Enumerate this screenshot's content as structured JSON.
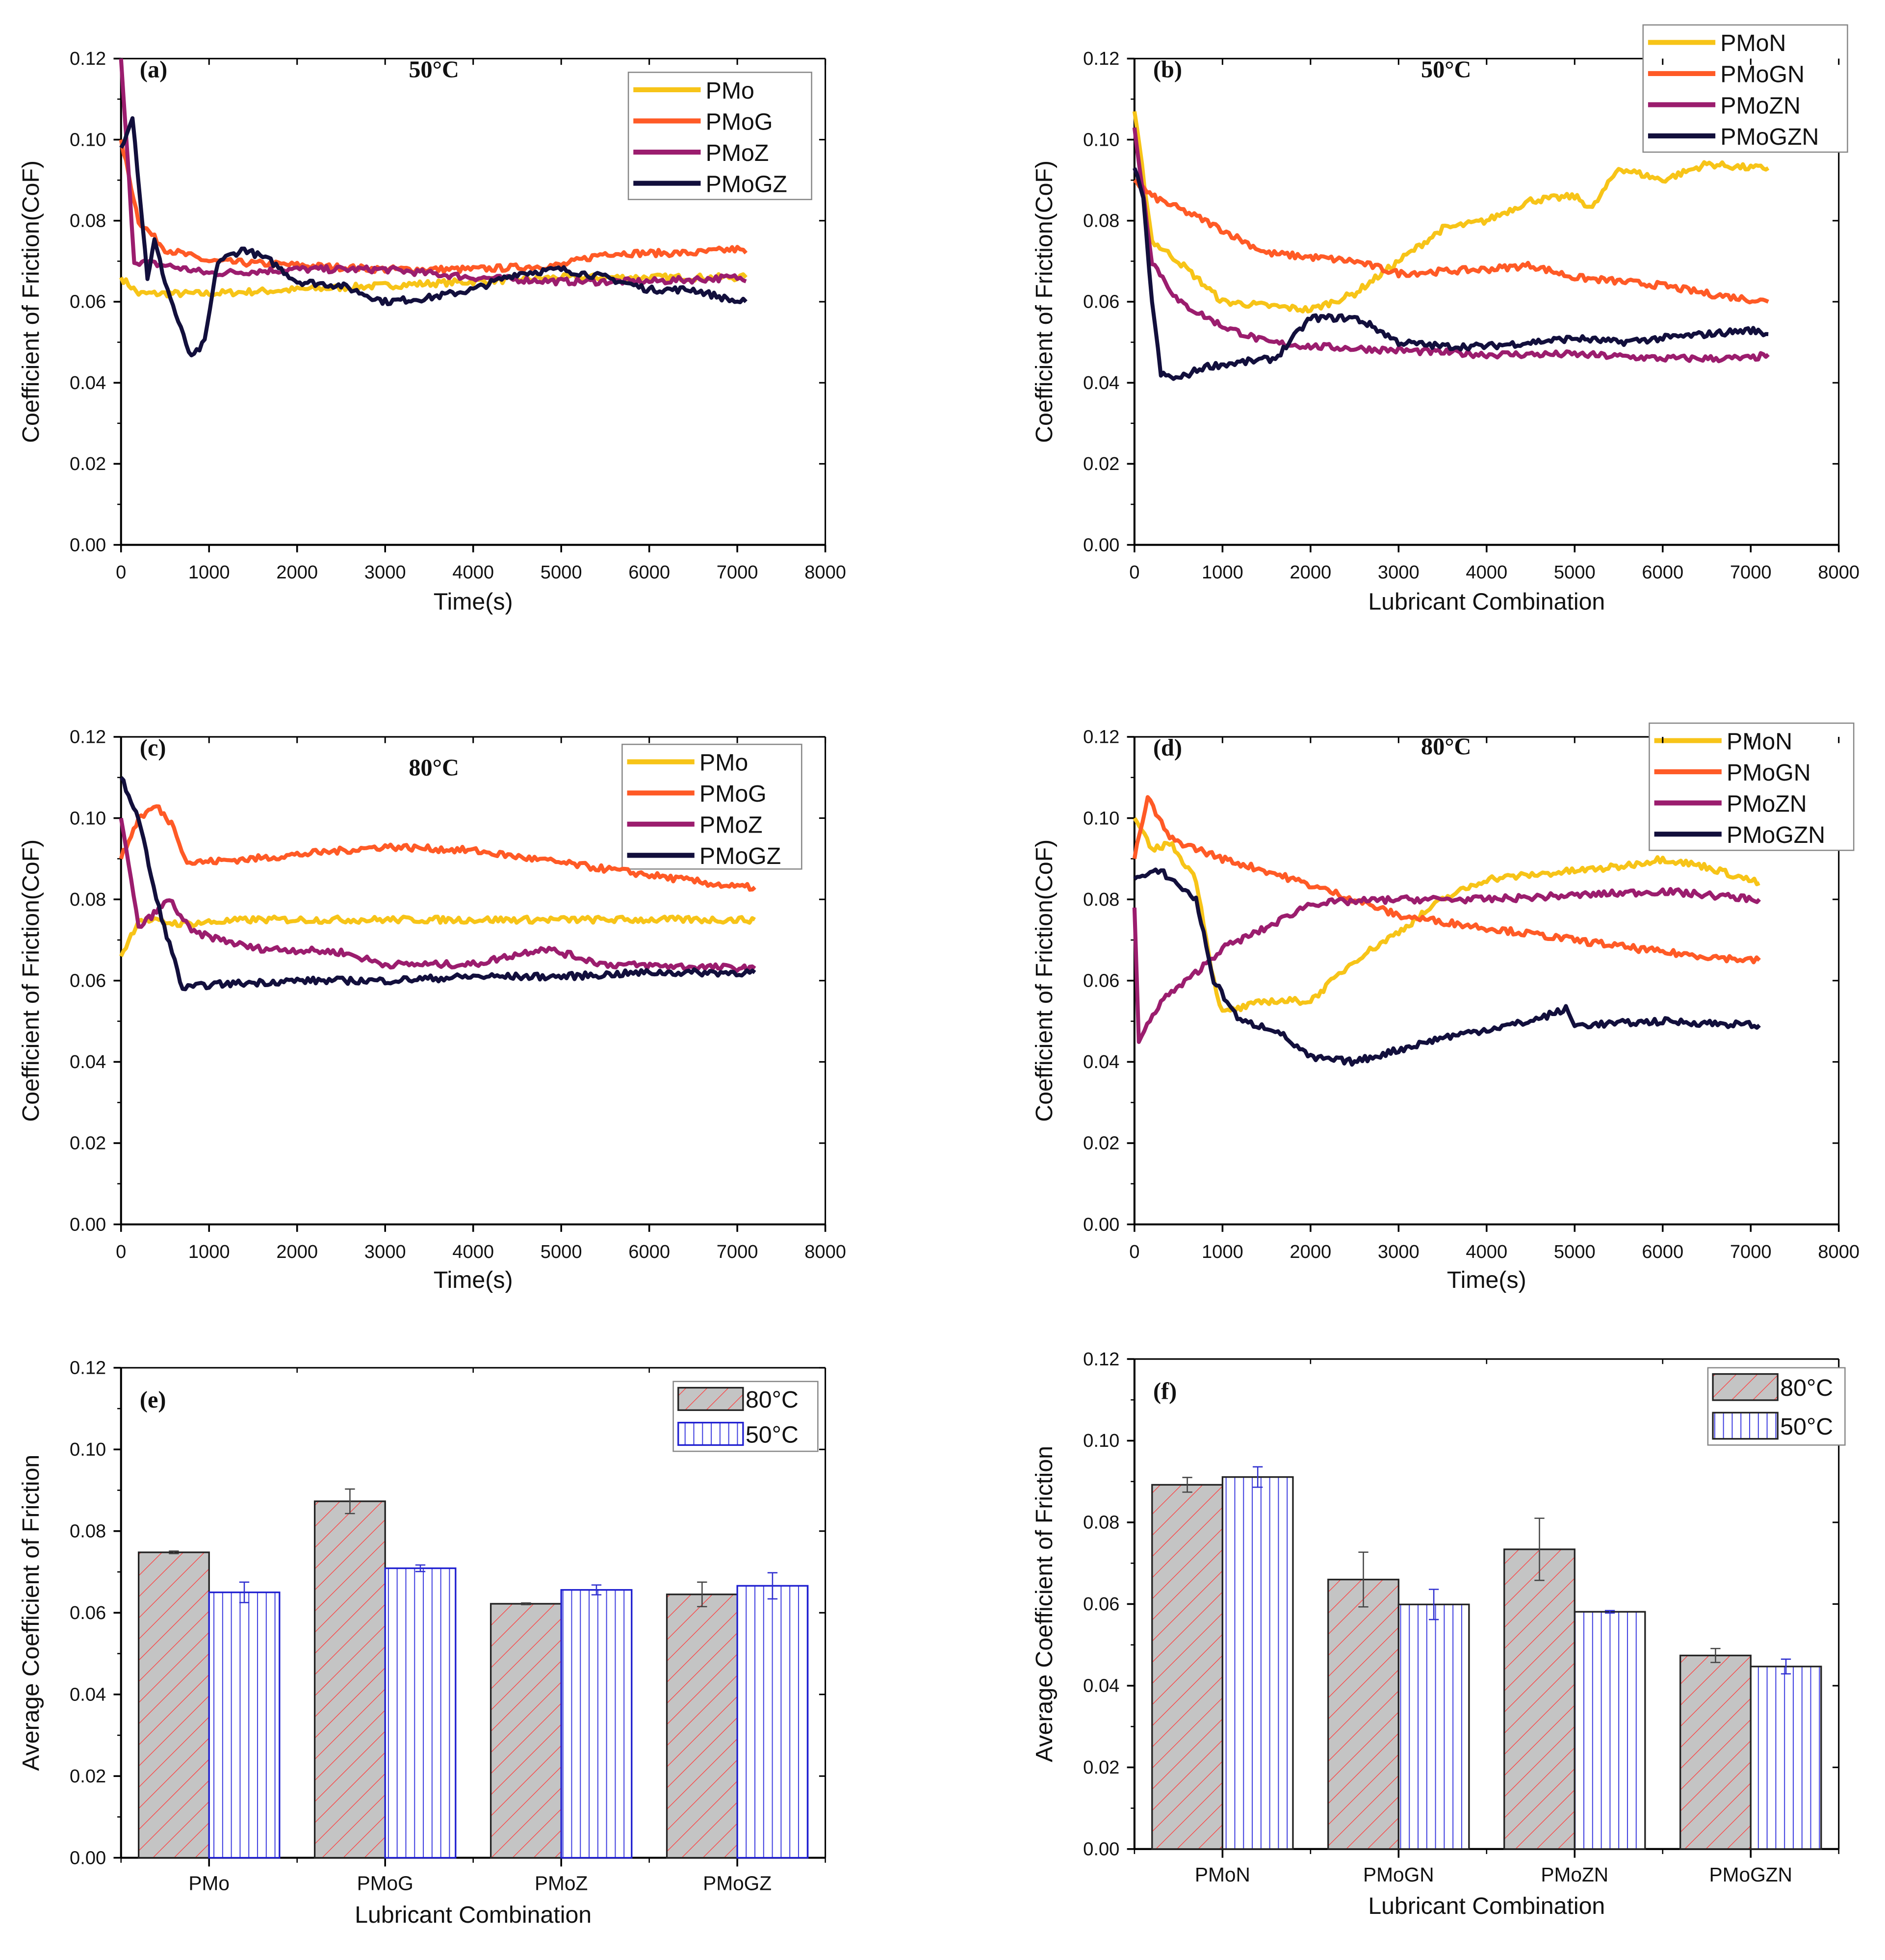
{
  "chart_data": [
    {
      "type": "line",
      "panel": "(a)",
      "title": "50°C",
      "xlabel": "Time(s)",
      "ylabel": "Coefficient of Friction(CoF)",
      "xlim": [
        0,
        8000
      ],
      "ylim": [
        0,
        0.12
      ],
      "xticks": [
        "0",
        "1000",
        "2000",
        "3000",
        "4000",
        "5000",
        "6000",
        "7000",
        "8000"
      ],
      "yticks": [
        "0.00",
        "0.02",
        "0.04",
        "0.06",
        "0.08",
        "0.10",
        "0.12"
      ],
      "legend_position": "top-right",
      "series": [
        {
          "name": "PMo",
          "color": "#F7C418",
          "x": [
            0,
            200,
            1000,
            2000,
            3000,
            4000,
            5000,
            6000,
            7000,
            7100
          ],
          "y": [
            0.066,
            0.062,
            0.062,
            0.063,
            0.064,
            0.065,
            0.066,
            0.066,
            0.066,
            0.066
          ]
        },
        {
          "name": "PMoG",
          "color": "#FF5A26",
          "x": [
            0,
            200,
            500,
            1000,
            2000,
            3000,
            4000,
            5000,
            5500,
            6500,
            7000,
            7100
          ],
          "y": [
            0.1,
            0.08,
            0.073,
            0.07,
            0.069,
            0.068,
            0.068,
            0.069,
            0.072,
            0.072,
            0.073,
            0.072
          ]
        },
        {
          "name": "PMoZ",
          "color": "#9B1D6E",
          "x": [
            0,
            150,
            500,
            1000,
            2000,
            3000,
            4000,
            5000,
            6000,
            7000,
            7100
          ],
          "y": [
            0.12,
            0.07,
            0.069,
            0.067,
            0.068,
            0.068,
            0.066,
            0.065,
            0.065,
            0.066,
            0.065
          ]
        },
        {
          "name": "PMoGZ",
          "color": "#120F3C",
          "x": [
            0,
            130,
            300,
            380,
            500,
            650,
            800,
            950,
            1100,
            1400,
            1700,
            2000,
            2500,
            3000,
            3500,
            4000,
            4500,
            5000,
            5500,
            6000,
            6500,
            7000,
            7100
          ],
          "y": [
            0.098,
            0.106,
            0.066,
            0.075,
            0.065,
            0.055,
            0.046,
            0.05,
            0.07,
            0.073,
            0.07,
            0.065,
            0.064,
            0.06,
            0.061,
            0.063,
            0.067,
            0.068,
            0.066,
            0.063,
            0.063,
            0.06,
            0.06
          ]
        }
      ]
    },
    {
      "type": "line",
      "panel": "(b)",
      "title": "50°C",
      "xlabel": "Lubricant Combination",
      "ylabel": "Coefficient of Friction(CoF)",
      "xlim": [
        0,
        8000
      ],
      "ylim": [
        0,
        0.12
      ],
      "xticks": [
        "0",
        "1000",
        "2000",
        "3000",
        "4000",
        "5000",
        "6000",
        "7000",
        "8000"
      ],
      "yticks": [
        "0.00",
        "0.02",
        "0.04",
        "0.06",
        "0.08",
        "0.10",
        "0.12"
      ],
      "legend_position": "top-right",
      "series": [
        {
          "name": "PMoN",
          "color": "#F7C418",
          "x": [
            0,
            200,
            500,
            1000,
            1500,
            2000,
            2500,
            3000,
            3500,
            4000,
            4500,
            5000,
            5200,
            5500,
            6000,
            6500,
            7000,
            7200
          ],
          "y": [
            0.107,
            0.075,
            0.07,
            0.06,
            0.059,
            0.058,
            0.062,
            0.07,
            0.078,
            0.08,
            0.085,
            0.086,
            0.083,
            0.093,
            0.09,
            0.094,
            0.093,
            0.093
          ]
        },
        {
          "name": "PMoGN",
          "color": "#FF5A26",
          "x": [
            0,
            200,
            800,
            1500,
            2000,
            2500,
            3000,
            4000,
            4500,
            5000,
            6000,
            6500,
            7200
          ],
          "y": [
            0.09,
            0.086,
            0.08,
            0.072,
            0.071,
            0.07,
            0.067,
            0.068,
            0.069,
            0.066,
            0.064,
            0.062,
            0.06
          ]
        },
        {
          "name": "PMoZN",
          "color": "#9B1D6E",
          "x": [
            0,
            200,
            500,
            1000,
            1500,
            2000,
            3000,
            4000,
            5000,
            6000,
            7000,
            7200
          ],
          "y": [
            0.103,
            0.07,
            0.06,
            0.054,
            0.05,
            0.049,
            0.048,
            0.047,
            0.047,
            0.046,
            0.046,
            0.047
          ]
        },
        {
          "name": "PMoGZN",
          "color": "#120F3C",
          "x": [
            0,
            100,
            200,
            300,
            500,
            800,
            1200,
            1600,
            2000,
            2500,
            2700,
            3000,
            3500,
            4000,
            4500,
            5000,
            5500,
            6000,
            6500,
            7000,
            7200
          ],
          "y": [
            0.093,
            0.085,
            0.06,
            0.042,
            0.041,
            0.044,
            0.045,
            0.046,
            0.056,
            0.056,
            0.054,
            0.05,
            0.049,
            0.049,
            0.05,
            0.051,
            0.05,
            0.051,
            0.052,
            0.053,
            0.052
          ]
        }
      ]
    },
    {
      "type": "line",
      "panel": "(c)",
      "title": "80°C",
      "xlabel": "Time(s)",
      "ylabel": "Coefficient of Friction(CoF)",
      "xlim": [
        0,
        8000
      ],
      "ylim": [
        0,
        0.12
      ],
      "xticks": [
        "0",
        "1000",
        "2000",
        "3000",
        "4000",
        "5000",
        "6000",
        "7000",
        "8000"
      ],
      "yticks": [
        "0.00",
        "0.02",
        "0.04",
        "0.06",
        "0.08",
        "0.10",
        "0.12"
      ],
      "legend_position": "top-right",
      "series": [
        {
          "name": "PMo",
          "color": "#F7C418",
          "x": [
            0,
            200,
            700,
            1500,
            3000,
            5000,
            7200
          ],
          "y": [
            0.066,
            0.075,
            0.074,
            0.075,
            0.075,
            0.075,
            0.075
          ]
        },
        {
          "name": "PMoG",
          "color": "#FF5A26",
          "x": [
            0,
            200,
            400,
            600,
            750,
            1500,
            2000,
            3000,
            4000,
            5000,
            6000,
            7000,
            7200
          ],
          "y": [
            0.09,
            0.1,
            0.103,
            0.098,
            0.089,
            0.09,
            0.091,
            0.093,
            0.092,
            0.089,
            0.086,
            0.083,
            0.083
          ]
        },
        {
          "name": "PMoZ",
          "color": "#9B1D6E",
          "x": [
            0,
            200,
            550,
            800,
            1500,
            2500,
            3000,
            4000,
            4800,
            5500,
            7200
          ],
          "y": [
            0.1,
            0.073,
            0.08,
            0.072,
            0.068,
            0.067,
            0.064,
            0.064,
            0.068,
            0.064,
            0.063
          ]
        },
        {
          "name": "PMoGZ",
          "color": "#120F3C",
          "x": [
            0,
            200,
            400,
            700,
            1000,
            2000,
            3000,
            4000,
            5000,
            6000,
            7200
          ],
          "y": [
            0.11,
            0.1,
            0.08,
            0.058,
            0.059,
            0.06,
            0.06,
            0.061,
            0.061,
            0.062,
            0.062
          ]
        }
      ]
    },
    {
      "type": "line",
      "panel": "(d)",
      "title": "80°C",
      "xlabel": "Time(s)",
      "ylabel": "Coefficient of Friction(CoF)",
      "xlim": [
        0,
        8000
      ],
      "ylim": [
        0,
        0.12
      ],
      "xticks": [
        "0",
        "1000",
        "2000",
        "3000",
        "4000",
        "5000",
        "6000",
        "7000",
        "8000"
      ],
      "yticks": [
        "0.00",
        "0.02",
        "0.04",
        "0.06",
        "0.08",
        "0.10",
        "0.12"
      ],
      "legend_position": "top-right",
      "series": [
        {
          "name": "PMoN",
          "color": "#F7C418",
          "x": [
            0,
            200,
            400,
            700,
            900,
            1000,
            1500,
            2000,
            2500,
            3000,
            3500,
            4000,
            5000,
            5500,
            6000,
            6500,
            7100
          ],
          "y": [
            0.1,
            0.092,
            0.094,
            0.085,
            0.06,
            0.052,
            0.055,
            0.055,
            0.065,
            0.072,
            0.08,
            0.085,
            0.087,
            0.088,
            0.09,
            0.088,
            0.084
          ]
        },
        {
          "name": "PMoGN",
          "color": "#FF5A26",
          "x": [
            0,
            150,
            400,
            1000,
            1500,
            2500,
            3000,
            4000,
            5000,
            6000,
            7000,
            7100
          ],
          "y": [
            0.09,
            0.105,
            0.095,
            0.09,
            0.087,
            0.08,
            0.076,
            0.073,
            0.07,
            0.067,
            0.065,
            0.065
          ]
        },
        {
          "name": "PMoZN",
          "color": "#9B1D6E",
          "x": [
            0,
            50,
            300,
            600,
            1000,
            1500,
            2000,
            3000,
            4000,
            5000,
            6000,
            7100
          ],
          "y": [
            0.078,
            0.045,
            0.055,
            0.06,
            0.068,
            0.073,
            0.079,
            0.08,
            0.08,
            0.081,
            0.082,
            0.08
          ]
        },
        {
          "name": "PMoGZN",
          "color": "#120F3C",
          "x": [
            0,
            300,
            700,
            900,
            1200,
            1600,
            2000,
            2500,
            3000,
            3500,
            4000,
            4500,
            4900,
            5000,
            6000,
            7100
          ],
          "y": [
            0.085,
            0.087,
            0.08,
            0.06,
            0.05,
            0.048,
            0.041,
            0.04,
            0.043,
            0.046,
            0.048,
            0.05,
            0.053,
            0.049,
            0.05,
            0.049
          ]
        }
      ]
    },
    {
      "type": "bar",
      "panel": "(e)",
      "xlabel": "Lubricant Combination",
      "ylabel": "Average Coefficient of Friction",
      "ylim": [
        0,
        0.12
      ],
      "yticks": [
        "0.00",
        "0.02",
        "0.04",
        "0.06",
        "0.08",
        "0.10",
        "0.12"
      ],
      "categories": [
        "PMo",
        "PMoG",
        "PMoZ",
        "PMoGZ"
      ],
      "legend_position": "top-right",
      "series": [
        {
          "name": "80°C",
          "values": [
            0.0748,
            0.0873,
            0.0622,
            0.0645
          ],
          "errors": [
            0.0003,
            0.003,
            0.0002,
            0.003
          ],
          "hatch": "diagonal",
          "color": "#C4C4C4",
          "hatch_color": "#FF3B3B",
          "edge": "#222222"
        },
        {
          "name": "50°C",
          "values": [
            0.065,
            0.0709,
            0.0656,
            0.0666
          ],
          "errors": [
            0.0025,
            0.0008,
            0.0012,
            0.0032
          ],
          "hatch": "vertical",
          "color": "#FFFFFF",
          "hatch_color": "#4040E0",
          "edge": "#2020D0"
        }
      ]
    },
    {
      "type": "bar",
      "panel": "(f)",
      "xlabel": "Lubricant Combination",
      "ylabel": "Average Coefficient of Friction",
      "ylim": [
        0,
        0.12
      ],
      "yticks": [
        "0.00",
        "0.02",
        "0.04",
        "0.06",
        "0.08",
        "0.10",
        "0.12"
      ],
      "categories": [
        "PMoN",
        "PMoGN",
        "PMoZN",
        "PMoGZN"
      ],
      "legend_position": "top-right",
      "series": [
        {
          "name": "80°C",
          "values": [
            0.0892,
            0.066,
            0.0734,
            0.0474
          ],
          "errors": [
            0.0018,
            0.0067,
            0.0076,
            0.0017
          ],
          "hatch": "diagonal",
          "color": "#C4C4C4",
          "hatch_color": "#FF3B3B",
          "edge": "#222222"
        },
        {
          "name": "50°C",
          "values": [
            0.0911,
            0.0599,
            0.0581,
            0.0447
          ],
          "errors": [
            0.0025,
            0.0037,
            0.0003,
            0.0018
          ],
          "hatch": "vertical",
          "color": "#FFFFFF",
          "hatch_color": "#4040E0",
          "edge": "#222222"
        }
      ]
    }
  ]
}
